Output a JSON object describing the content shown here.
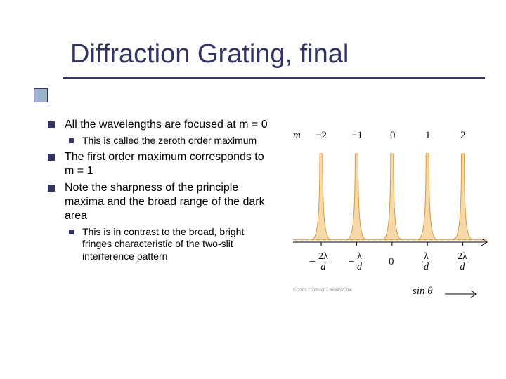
{
  "title": "Diffraction Grating, final",
  "bullets": [
    {
      "level": 0,
      "text": "All the wavelengths are focused at m = 0"
    },
    {
      "level": 1,
      "text": "This is called the zeroth order maximum"
    },
    {
      "level": 0,
      "text": "The first order maximum corresponds to m = 1"
    },
    {
      "level": 0,
      "text": "Note the sharpness of the principle maxima and the broad range of the dark area"
    },
    {
      "level": 1,
      "text": "This is in contrast to the broad, bright fringes characteristic of the two-slit interference pattern"
    }
  ],
  "figure": {
    "m_symbol": "m",
    "m_values": [
      "−2",
      "−1",
      "0",
      "1",
      "2"
    ],
    "peak_positions_pct": [
      15,
      33,
      51,
      69,
      87
    ],
    "peak_color_fill": "#f5d9a8",
    "peak_color_stroke": "#d99a3a",
    "baseline_color": "#d99a3a",
    "x_axis_labels": [
      "-2λ/d",
      "-λ/d",
      "0",
      "λ/d",
      "2λ/d"
    ],
    "sin_theta": "sin θ",
    "copyright": "© 2003 Thomson - Brooks/Cole"
  },
  "colors": {
    "accent": "#333366",
    "accent_fill": "#99b3cc",
    "text": "#000000"
  }
}
